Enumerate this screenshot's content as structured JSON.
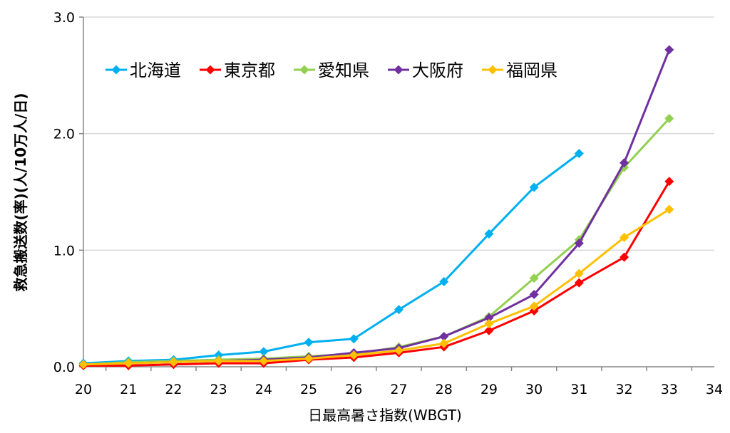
{
  "chart_data": {
    "type": "line",
    "xlabel": "日最高暑さ指数(WBGT)",
    "ylabel": "救急搬送数(率)(人/10万人/日)",
    "xlim": [
      20,
      34
    ],
    "ylim": [
      0,
      3.0
    ],
    "x_ticks": [
      "20",
      "21",
      "22",
      "23",
      "24",
      "25",
      "26",
      "27",
      "28",
      "29",
      "30",
      "31",
      "32",
      "33",
      "34"
    ],
    "y_ticks": [
      "0.0",
      "1.0",
      "2.0",
      "3.0"
    ],
    "grid": "horizontal",
    "legend_placement": "top-left",
    "x": [
      20,
      21,
      22,
      23,
      24,
      25,
      26,
      27,
      28,
      29,
      30,
      31,
      32,
      33
    ],
    "series": [
      {
        "name": "北海道",
        "color": "#00b0f0",
        "values": [
          0.03,
          0.05,
          0.06,
          0.1,
          0.13,
          0.21,
          0.24,
          0.49,
          0.73,
          1.14,
          1.54,
          1.83,
          null,
          null
        ]
      },
      {
        "name": "東京都",
        "color": "#ff0000",
        "values": [
          0.01,
          0.01,
          0.02,
          0.03,
          0.03,
          0.06,
          0.08,
          0.12,
          0.17,
          0.31,
          0.48,
          0.72,
          0.94,
          1.59
        ]
      },
      {
        "name": "愛知県",
        "color": "#92d050",
        "values": [
          0.02,
          0.04,
          0.05,
          0.06,
          0.07,
          0.09,
          0.11,
          0.17,
          0.26,
          0.43,
          0.76,
          1.09,
          1.71,
          2.13
        ]
      },
      {
        "name": "大阪府",
        "color": "#7030a0",
        "values": [
          0.02,
          0.03,
          0.04,
          0.05,
          0.06,
          0.08,
          0.12,
          0.16,
          0.26,
          0.42,
          0.62,
          1.06,
          1.75,
          2.72
        ]
      },
      {
        "name": "福岡県",
        "color": "#ffc000",
        "values": [
          0.02,
          0.03,
          0.04,
          0.05,
          0.05,
          0.07,
          0.1,
          0.14,
          0.2,
          0.37,
          0.52,
          0.8,
          1.11,
          1.35
        ]
      }
    ]
  }
}
